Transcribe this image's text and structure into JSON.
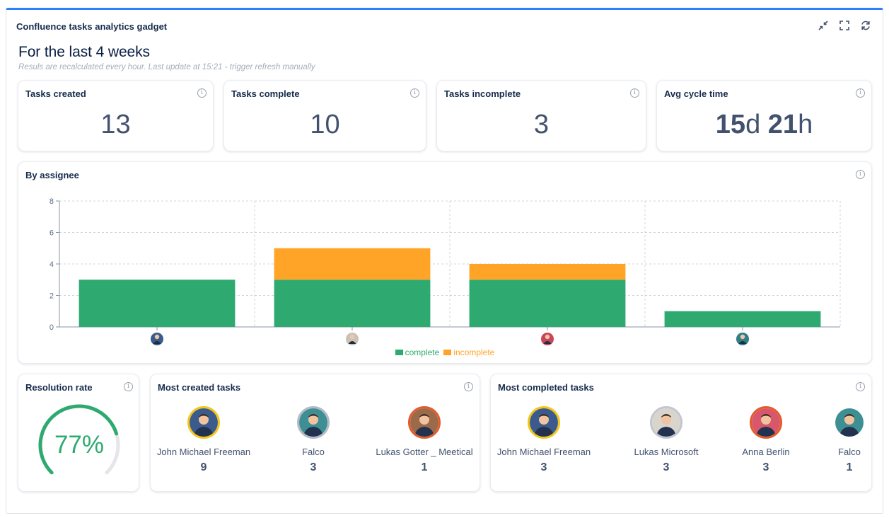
{
  "gadget": {
    "title": "Confluence tasks analytics gadget",
    "heading": "For the last 4 weeks",
    "subheading": "Resuls are recalculated every hour. Last update at 15:21 - trigger refresh manually",
    "toolbar_icons": [
      "minimize-icon",
      "fullscreen-icon",
      "refresh-icon"
    ]
  },
  "stats": {
    "created": {
      "label": "Tasks created",
      "value": "13"
    },
    "complete": {
      "label": "Tasks complete",
      "value": "10"
    },
    "incomplete": {
      "label": "Tasks incomplete",
      "value": "3"
    },
    "cycle": {
      "label": "Avg cycle time",
      "days": "15",
      "days_unit": "d",
      "hours": "21",
      "hours_unit": "h"
    }
  },
  "by_assignee": {
    "title": "By assignee"
  },
  "chart_data": {
    "type": "bar",
    "stacked": true,
    "categories": [
      "",
      "",
      "",
      ""
    ],
    "category_note": "x-axis categories are shown as assignee avatar images (no text)",
    "series": [
      {
        "name": "complete",
        "values": [
          3,
          3,
          3,
          1
        ],
        "color": "#2eaa70"
      },
      {
        "name": "incomplete",
        "values": [
          0,
          2,
          1,
          0
        ],
        "color": "#ffa426"
      }
    ],
    "ylim": [
      0,
      8
    ],
    "yticks": [
      "0",
      "2",
      "4",
      "6",
      "8"
    ],
    "grid": true,
    "legend": "bottom-center"
  },
  "resolution": {
    "title": "Resolution rate",
    "value": "77%",
    "rate": 0.77,
    "color": "#2eaa70"
  },
  "most_created": {
    "title": "Most created tasks",
    "people": [
      {
        "name": "John Michael Freeman",
        "count": "9",
        "ring": "#f5c518",
        "bg": "#3b5b8c"
      },
      {
        "name": "Falco",
        "count": "3",
        "ring": "#b3bac5",
        "bg": "#3d8f94"
      },
      {
        "name": "Lukas Gotter _ Meetical",
        "count": "1",
        "ring": "#e35b2b",
        "bg": "#9a6a4a"
      }
    ]
  },
  "most_completed": {
    "title": "Most completed tasks",
    "people": [
      {
        "name": "John Michael Freeman",
        "count": "3",
        "ring": "#f5c518",
        "bg": "#3b5b8c"
      },
      {
        "name": "Lukas Microsoft",
        "count": "3",
        "ring": "#c1c7d0",
        "bg": "#d9d4cc"
      },
      {
        "name": "Anna Berlin",
        "count": "3",
        "ring": "#e35b2b",
        "bg": "#d9576a"
      },
      {
        "name": "Falco",
        "count": "1",
        "ring": "#ffffff",
        "bg": "#3d8f94"
      }
    ]
  }
}
